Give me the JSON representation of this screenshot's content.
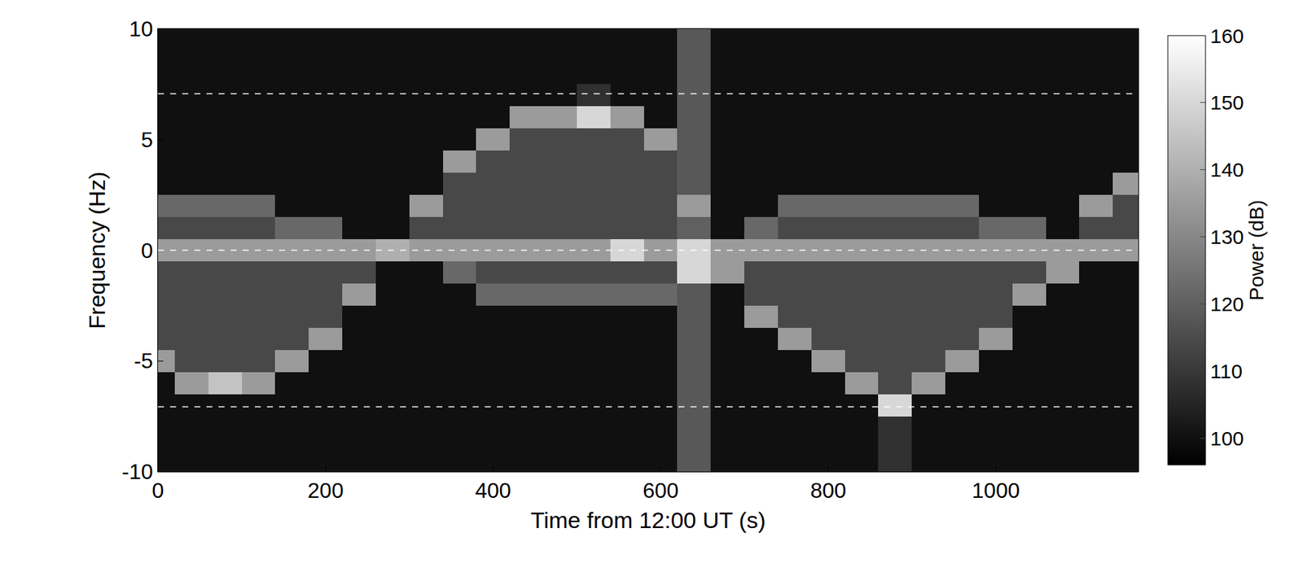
{
  "chart_data": {
    "type": "heatmap",
    "x_label": "Time from 12:00 UT (s)",
    "y_label": "Frequency (Hz)",
    "x": [
      0,
      40,
      80,
      120,
      160,
      200,
      240,
      280,
      320,
      360,
      400,
      440,
      480,
      520,
      560,
      600,
      640,
      680,
      720,
      760,
      800,
      840,
      880,
      920,
      960,
      1000,
      1040,
      1080,
      1120,
      1160
    ],
    "y": [
      -10,
      -9,
      -8,
      -7,
      -6,
      -5,
      -4,
      -3,
      -2,
      -1,
      0,
      1,
      2,
      3,
      4,
      5,
      6,
      7,
      8,
      9,
      10
    ],
    "z": [
      [
        100,
        100,
        100,
        100,
        100,
        100,
        100,
        100,
        100,
        100,
        100,
        100,
        100,
        100,
        100,
        100,
        118,
        100,
        100,
        100,
        100,
        100,
        108,
        100,
        100,
        100,
        100,
        100,
        100,
        100
      ],
      [
        100,
        100,
        100,
        100,
        100,
        100,
        100,
        100,
        100,
        100,
        100,
        100,
        100,
        100,
        100,
        100,
        118,
        100,
        100,
        100,
        100,
        100,
        108,
        100,
        100,
        100,
        100,
        100,
        100,
        100
      ],
      [
        100,
        100,
        100,
        100,
        100,
        100,
        100,
        100,
        100,
        100,
        100,
        100,
        100,
        100,
        100,
        100,
        118,
        100,
        100,
        100,
        100,
        100,
        108,
        100,
        100,
        100,
        100,
        100,
        100,
        100
      ],
      [
        100,
        100,
        100,
        100,
        100,
        100,
        100,
        100,
        100,
        100,
        100,
        100,
        100,
        100,
        100,
        100,
        118,
        100,
        100,
        100,
        100,
        100,
        150,
        100,
        100,
        100,
        100,
        100,
        100,
        100
      ],
      [
        100,
        135,
        145,
        135,
        100,
        100,
        100,
        100,
        100,
        100,
        100,
        100,
        100,
        100,
        100,
        100,
        118,
        100,
        100,
        100,
        100,
        135,
        114,
        135,
        100,
        100,
        100,
        100,
        100,
        100
      ],
      [
        135,
        114,
        114,
        114,
        135,
        100,
        100,
        100,
        100,
        100,
        100,
        100,
        100,
        100,
        100,
        100,
        118,
        100,
        100,
        100,
        135,
        114,
        114,
        114,
        135,
        100,
        100,
        100,
        100,
        100
      ],
      [
        114,
        114,
        114,
        114,
        114,
        135,
        100,
        100,
        100,
        100,
        100,
        100,
        100,
        100,
        100,
        100,
        118,
        100,
        100,
        135,
        114,
        114,
        114,
        114,
        114,
        135,
        100,
        100,
        100,
        100
      ],
      [
        114,
        114,
        114,
        114,
        114,
        114,
        100,
        100,
        100,
        100,
        100,
        100,
        100,
        100,
        100,
        100,
        118,
        100,
        135,
        114,
        114,
        114,
        114,
        114,
        114,
        114,
        100,
        100,
        100,
        100
      ],
      [
        114,
        114,
        114,
        114,
        114,
        114,
        135,
        100,
        100,
        100,
        122,
        122,
        122,
        122,
        122,
        122,
        118,
        100,
        114,
        114,
        114,
        114,
        114,
        114,
        114,
        114,
        135,
        100,
        100,
        100
      ],
      [
        114,
        114,
        114,
        114,
        114,
        114,
        114,
        100,
        100,
        122,
        114,
        114,
        114,
        114,
        114,
        114,
        150,
        135,
        114,
        114,
        114,
        114,
        114,
        114,
        114,
        114,
        114,
        135,
        100,
        100
      ],
      [
        135,
        135,
        135,
        135,
        135,
        135,
        135,
        140,
        135,
        135,
        135,
        135,
        135,
        135,
        150,
        135,
        150,
        135,
        135,
        135,
        135,
        135,
        135,
        135,
        135,
        135,
        135,
        135,
        135,
        135
      ],
      [
        114,
        114,
        114,
        114,
        122,
        122,
        100,
        100,
        114,
        114,
        114,
        114,
        114,
        114,
        114,
        114,
        120,
        100,
        122,
        114,
        114,
        114,
        114,
        114,
        114,
        122,
        122,
        100,
        114,
        114
      ],
      [
        122,
        122,
        122,
        122,
        100,
        100,
        100,
        100,
        135,
        114,
        114,
        114,
        114,
        114,
        114,
        114,
        135,
        100,
        100,
        122,
        122,
        122,
        122,
        122,
        122,
        100,
        100,
        100,
        135,
        114
      ],
      [
        100,
        100,
        100,
        100,
        100,
        100,
        100,
        100,
        100,
        114,
        114,
        114,
        114,
        114,
        114,
        114,
        118,
        100,
        100,
        100,
        100,
        100,
        100,
        100,
        100,
        100,
        100,
        100,
        100,
        135
      ],
      [
        100,
        100,
        100,
        100,
        100,
        100,
        100,
        100,
        100,
        135,
        114,
        114,
        114,
        114,
        114,
        114,
        118,
        100,
        100,
        100,
        100,
        100,
        100,
        100,
        100,
        100,
        100,
        100,
        100,
        100
      ],
      [
        100,
        100,
        100,
        100,
        100,
        100,
        100,
        100,
        100,
        100,
        135,
        114,
        114,
        114,
        114,
        135,
        118,
        100,
        100,
        100,
        100,
        100,
        100,
        100,
        100,
        100,
        100,
        100,
        100,
        100
      ],
      [
        100,
        100,
        100,
        100,
        100,
        100,
        100,
        100,
        100,
        100,
        100,
        135,
        135,
        150,
        135,
        100,
        118,
        100,
        100,
        100,
        100,
        100,
        100,
        100,
        100,
        100,
        100,
        100,
        100,
        100
      ],
      [
        100,
        100,
        100,
        100,
        100,
        100,
        100,
        100,
        100,
        100,
        100,
        100,
        100,
        108,
        100,
        100,
        118,
        100,
        100,
        100,
        100,
        100,
        100,
        100,
        100,
        100,
        100,
        100,
        100,
        100
      ],
      [
        100,
        100,
        100,
        100,
        100,
        100,
        100,
        100,
        100,
        100,
        100,
        100,
        100,
        100,
        100,
        100,
        118,
        100,
        100,
        100,
        100,
        100,
        100,
        100,
        100,
        100,
        100,
        100,
        100,
        100
      ],
      [
        100,
        100,
        100,
        100,
        100,
        100,
        100,
        100,
        100,
        100,
        100,
        100,
        100,
        100,
        100,
        100,
        118,
        100,
        100,
        100,
        100,
        100,
        100,
        100,
        100,
        100,
        100,
        100,
        100,
        100
      ],
      [
        100,
        100,
        100,
        100,
        100,
        100,
        100,
        100,
        100,
        100,
        100,
        100,
        100,
        100,
        100,
        100,
        118,
        100,
        100,
        100,
        100,
        100,
        100,
        100,
        100,
        100,
        100,
        100,
        100,
        100
      ]
    ],
    "xlim": [
      0,
      1170
    ],
    "xticks": [
      0,
      200,
      400,
      600,
      800,
      1000
    ],
    "ylim": [
      -10,
      10
    ],
    "yticks": [
      -10,
      -5,
      0,
      5,
      10
    ],
    "reference_lines": [
      7.07,
      0,
      -7.07
    ],
    "colorbar": {
      "title": "Power (dB)",
      "range": [
        96,
        160
      ],
      "ticks": [
        100,
        110,
        120,
        130,
        140,
        150,
        160
      ]
    },
    "color": "gray",
    "grid": false
  }
}
